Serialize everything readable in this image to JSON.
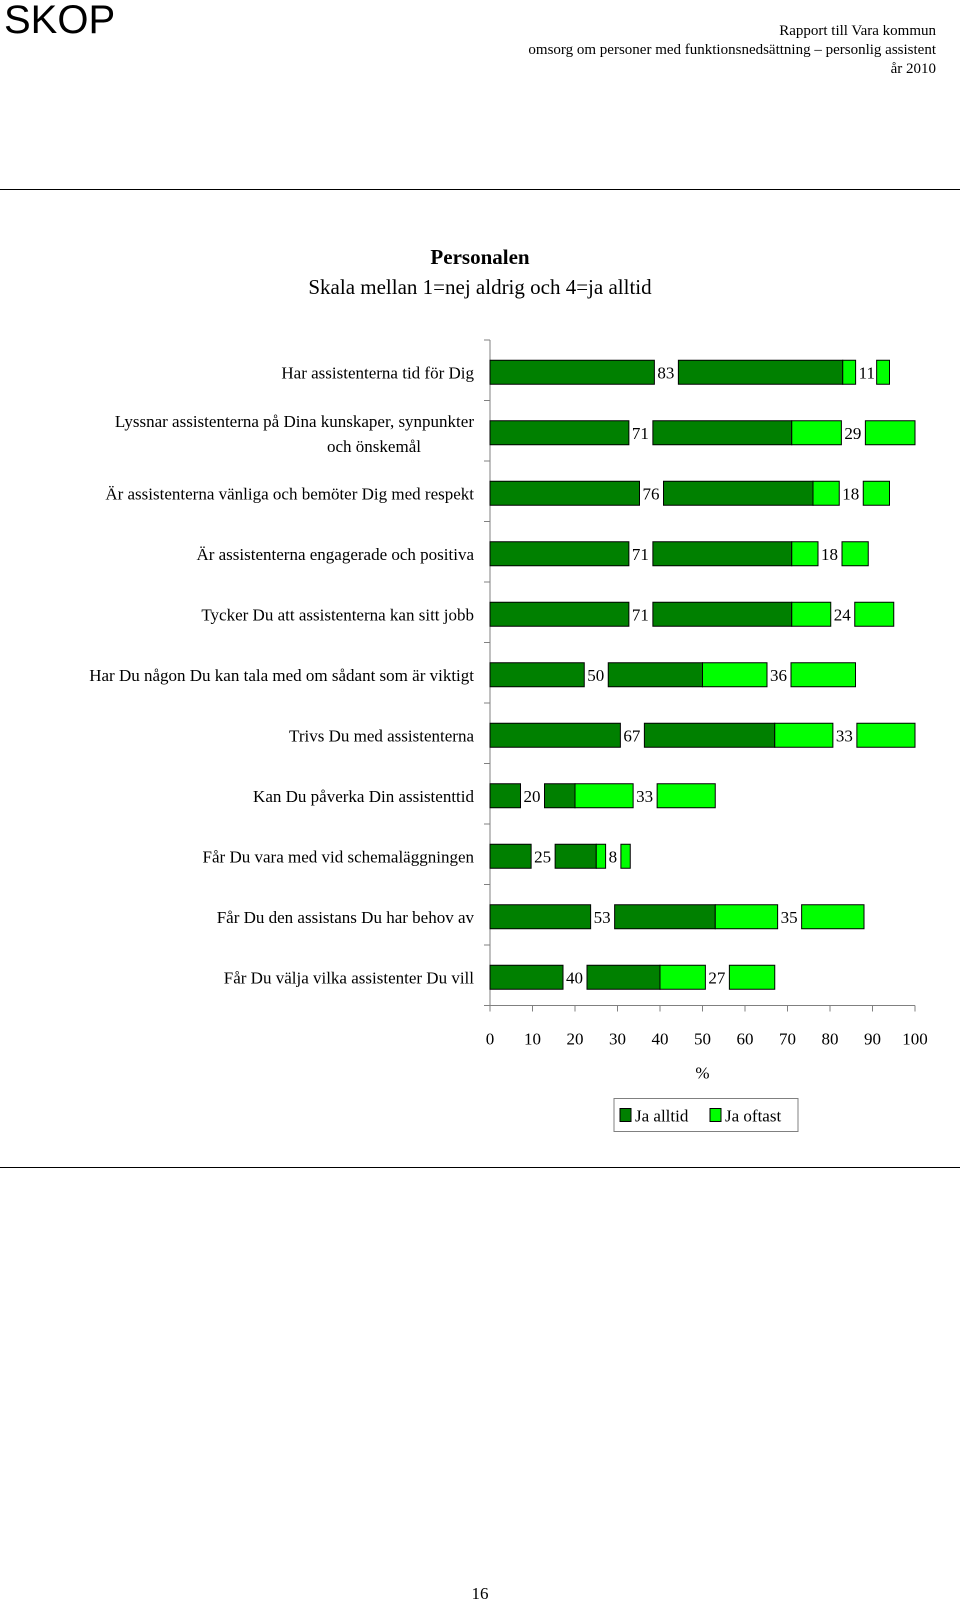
{
  "header": {
    "logo": "SKOP",
    "line1": "Rapport till Vara kommun",
    "line2": "omsorg om personer med funktionsnedsättning – personlig assistent",
    "line3": "år 2010"
  },
  "page_number": "16",
  "colors": {
    "ja_alltid": "#008000",
    "ja_oftast": "#00ff00"
  },
  "chart_data": {
    "type": "bar",
    "orientation": "horizontal",
    "stacked": true,
    "title": "Personalen",
    "subtitle": "Skala mellan 1=nej aldrig och 4=ja alltid",
    "categories": [
      [
        "Har assistenterna tid för Dig"
      ],
      [
        "Lyssnar assistenterna på Dina kunskaper, synpunkter",
        "och önskemål"
      ],
      [
        "Är assistenterna vänliga och bemöter Dig med respekt"
      ],
      [
        "Är assistenterna engagerade och positiva"
      ],
      [
        "Tycker Du att assistenterna kan sitt jobb"
      ],
      [
        "Har Du någon Du kan tala med om sådant som är viktigt"
      ],
      [
        "Trivs Du med assistenterna"
      ],
      [
        "Kan Du påverka Din assistenttid"
      ],
      [
        "Får Du vara med vid schemaläggningen"
      ],
      [
        "Får Du den assistans Du har behov av"
      ],
      [
        "Får Du välja vilka assistenter Du vill"
      ]
    ],
    "series": [
      {
        "name": "Ja alltid",
        "values": [
          83,
          71,
          76,
          71,
          71,
          50,
          67,
          20,
          25,
          53,
          40
        ]
      },
      {
        "name": "Ja oftast",
        "values": [
          11,
          29,
          18,
          18,
          24,
          36,
          33,
          33,
          8,
          35,
          27
        ]
      }
    ],
    "xlabel": "%",
    "xlim": [
      0,
      100
    ],
    "xticks": [
      0,
      10,
      20,
      30,
      40,
      50,
      60,
      70,
      80,
      90,
      100
    ],
    "grid": false,
    "legend": "bottom-center"
  }
}
